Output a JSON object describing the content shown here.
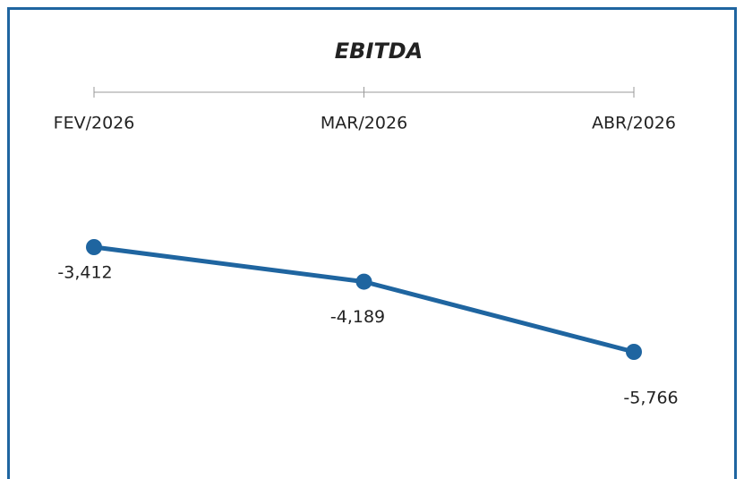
{
  "chart_data": {
    "type": "line",
    "title": "EBITDA",
    "categories": [
      "FEV/2026",
      "MAR/2026",
      "ABR/2026"
    ],
    "series": [
      {
        "name": "EBITDA",
        "color": "#1f65a0",
        "values": [
          -3412,
          -4189,
          -5766
        ],
        "value_labels": [
          "-3,412",
          "-4,189",
          "-5,766"
        ]
      }
    ]
  }
}
